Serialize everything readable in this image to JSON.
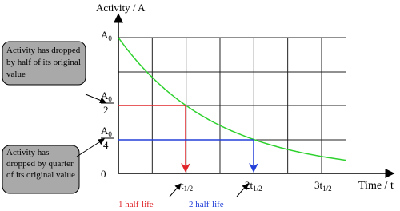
{
  "axes": {
    "y_title": "Activity / A",
    "x_title": "Time / t",
    "origin": "0"
  },
  "y_labels": {
    "a0": {
      "main": "A",
      "sub": "0"
    },
    "half": {
      "main": "A",
      "sub": "0",
      "den": "2"
    },
    "quarter": {
      "main": "A",
      "sub": "0",
      "den": "4"
    }
  },
  "x_labels": [
    {
      "main": "t",
      "sub": "1/2"
    },
    {
      "main": "2t",
      "sub": "1/2"
    },
    {
      "main": "3t",
      "sub": "1/2"
    }
  ],
  "callouts": [
    "Activity has dropped by half of its original value",
    "Activity has dropped by quarter of its original value"
  ],
  "notes": [
    "1 half-life",
    "2 half-life"
  ]
}
